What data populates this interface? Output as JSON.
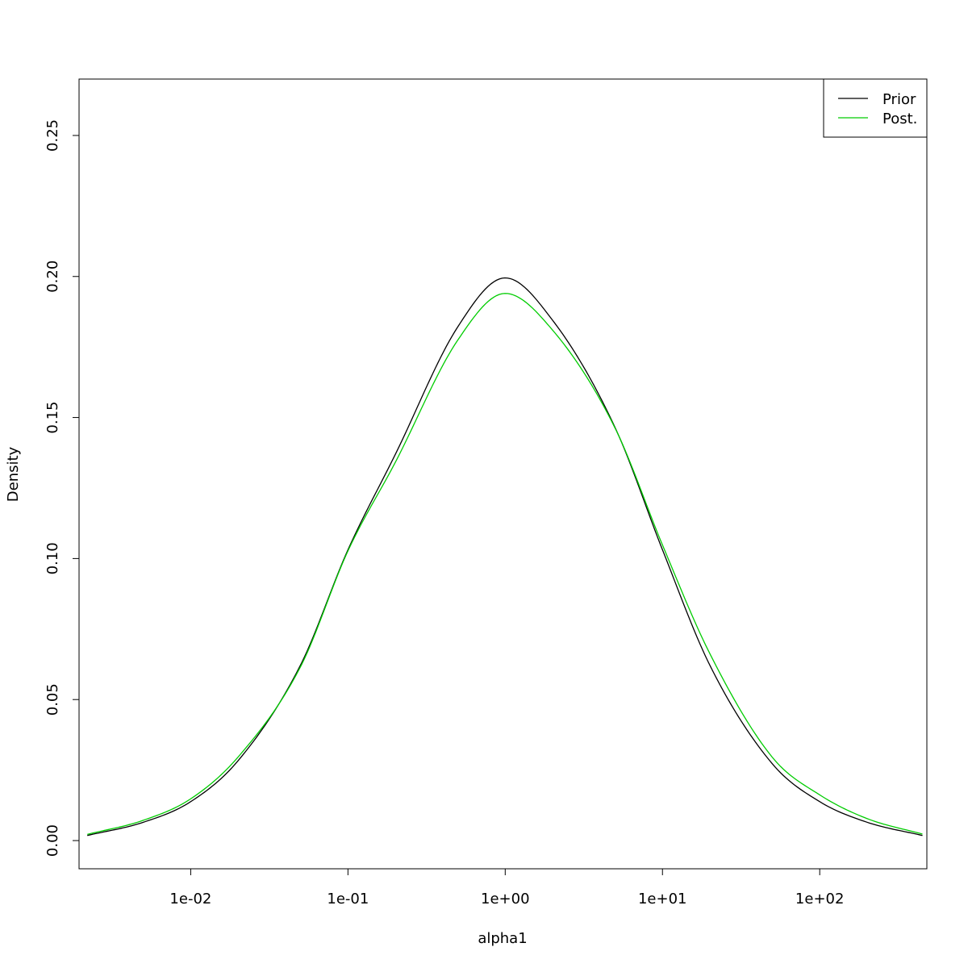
{
  "chart_data": {
    "type": "line",
    "title": "",
    "xlabel": "alpha1",
    "ylabel": "Density",
    "x_scale": "log10",
    "xlim": [
      0.00195,
      480
    ],
    "ylim": [
      -0.01,
      0.27
    ],
    "x_ticks": [
      {
        "value": 0.01,
        "label": "1e-02"
      },
      {
        "value": 0.1,
        "label": "1e-01"
      },
      {
        "value": 1,
        "label": "1e+00"
      },
      {
        "value": 10,
        "label": "1e+01"
      },
      {
        "value": 100,
        "label": "1e+02"
      }
    ],
    "y_ticks": [
      {
        "value": 0.0,
        "label": "0.00"
      },
      {
        "value": 0.05,
        "label": "0.05"
      },
      {
        "value": 0.1,
        "label": "0.10"
      },
      {
        "value": 0.15,
        "label": "0.15"
      },
      {
        "value": 0.2,
        "label": "0.20"
      },
      {
        "value": 0.25,
        "label": "0.25"
      }
    ],
    "grid": false,
    "legend_position": "top-right",
    "series": [
      {
        "name": "Prior",
        "color": "#000000",
        "x": [
          0.0022,
          0.005,
          0.01,
          0.02,
          0.05,
          0.1,
          0.2,
          0.5,
          1.0,
          2.0,
          5.0,
          10,
          20,
          50,
          100,
          200,
          450
        ],
        "y": [
          0.0018,
          0.0065,
          0.0138,
          0.0283,
          0.0623,
          0.1031,
          0.1369,
          0.1822,
          0.1995,
          0.1845,
          0.1464,
          0.1031,
          0.0622,
          0.0272,
          0.0138,
          0.0065,
          0.0018
        ]
      },
      {
        "name": "Post.",
        "color": "#00cc00",
        "x": [
          0.0022,
          0.005,
          0.01,
          0.02,
          0.05,
          0.1,
          0.2,
          0.5,
          1.0,
          2.0,
          5.0,
          10,
          20,
          50,
          100,
          200,
          450
        ],
        "y": [
          0.0022,
          0.0072,
          0.0148,
          0.0296,
          0.0617,
          0.1027,
          0.1341,
          0.1775,
          0.194,
          0.181,
          0.1462,
          0.1048,
          0.0663,
          0.0295,
          0.0162,
          0.0078,
          0.0023
        ]
      }
    ]
  }
}
